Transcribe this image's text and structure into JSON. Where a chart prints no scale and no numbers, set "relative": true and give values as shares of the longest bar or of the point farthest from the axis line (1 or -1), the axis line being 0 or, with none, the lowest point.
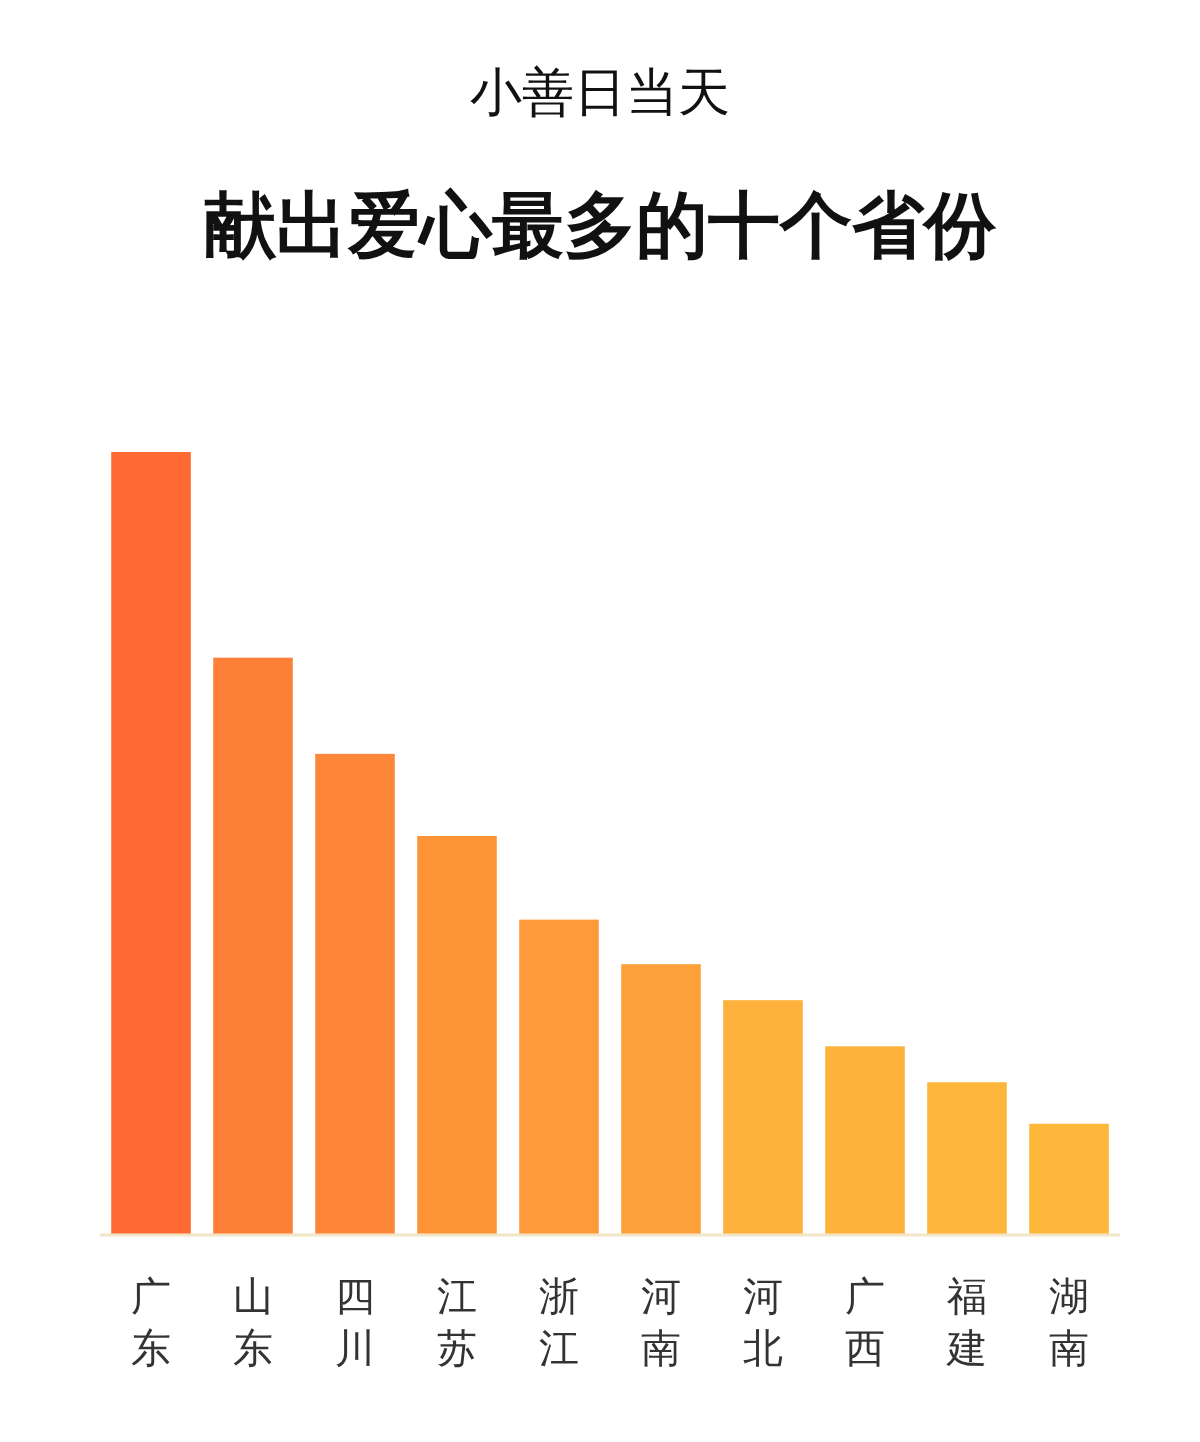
{
  "chart_data": {
    "type": "bar",
    "title": "小善日当天",
    "subtitle": "献出爱心最多的十个省份",
    "relative": true,
    "categories": [
      "广东",
      "山东",
      "四川",
      "江苏",
      "浙江",
      "河南",
      "河北",
      "广西",
      "福建",
      "湖南"
    ],
    "values": [
      1,
      0.737,
      0.614,
      0.509,
      0.402,
      0.345,
      0.299,
      0.24,
      0.194,
      0.141
    ],
    "colors": [
      "#ff6a32",
      "#fe7f38",
      "#fe8639",
      "#fe9438",
      "#fe9a3a",
      "#fea03a",
      "#fdb03b",
      "#fdb23b",
      "#fdb53b",
      "#fdb73b"
    ]
  }
}
